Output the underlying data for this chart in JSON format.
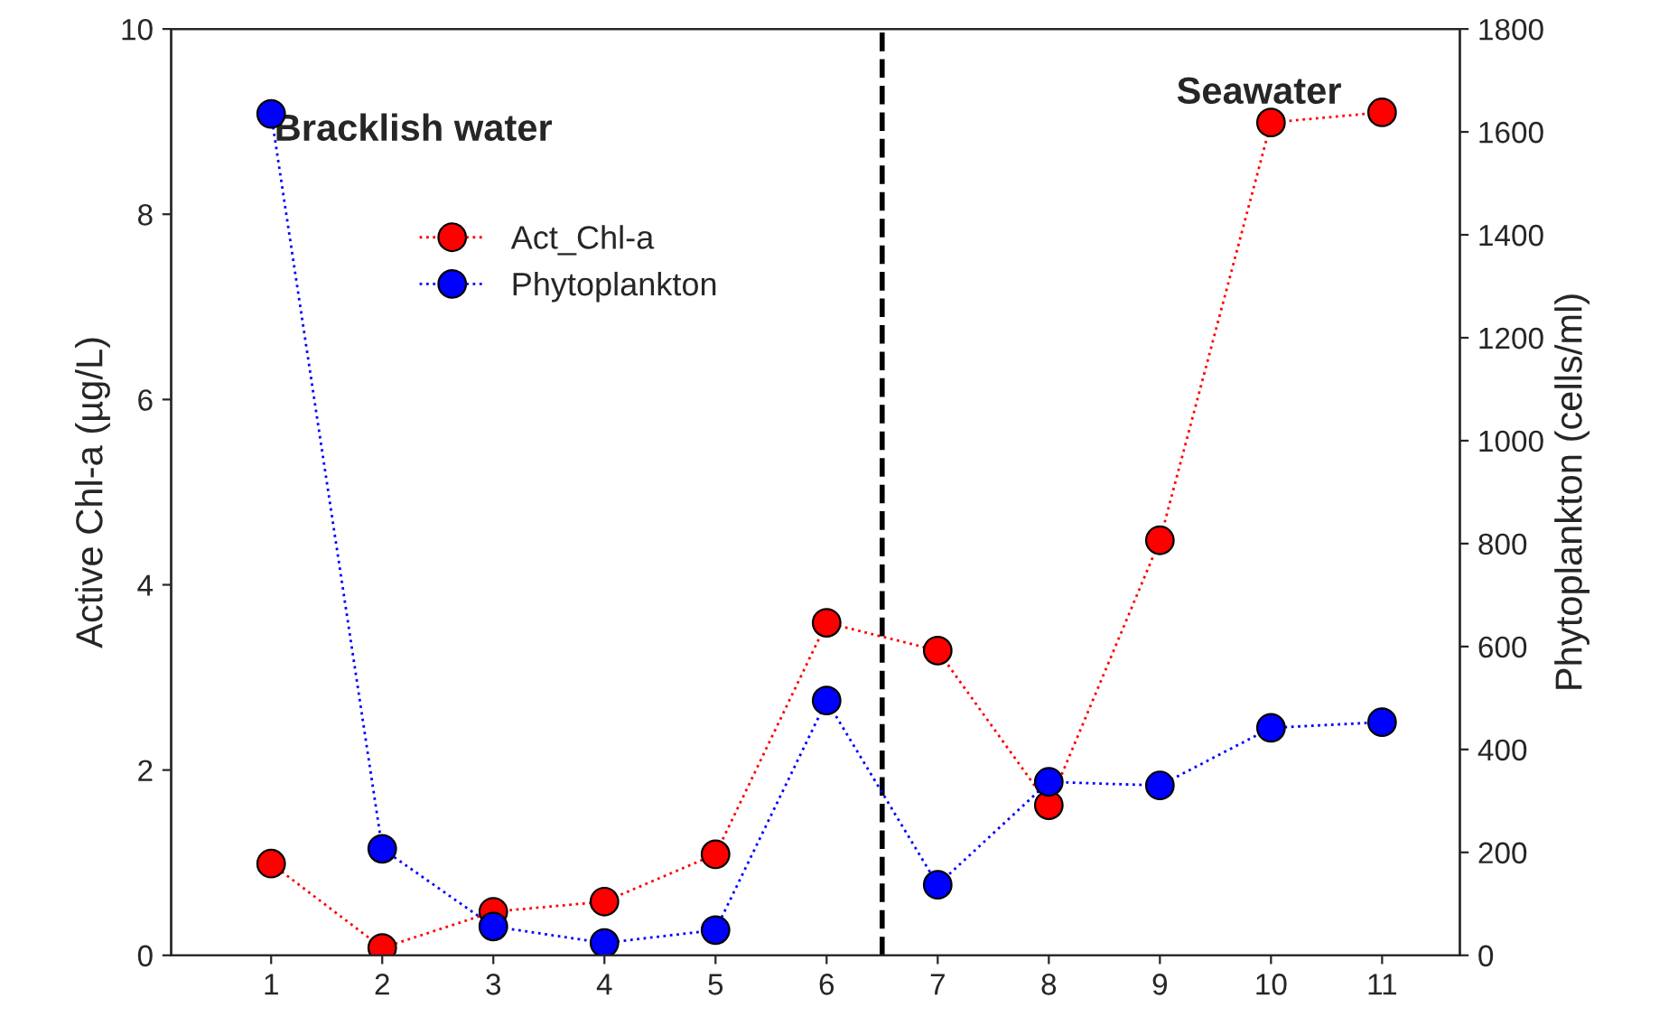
{
  "chart_data": {
    "type": "line",
    "ylabel": "Active Chl-a (µg/L)",
    "y2label": "Phytoplankton (cells/ml)",
    "x": [
      1,
      2,
      3,
      4,
      5,
      6,
      7,
      8,
      9,
      10,
      11
    ],
    "series": [
      {
        "name": "Act_Chl-a",
        "color": "#ff0000",
        "values": [
          0.99,
          0.08,
          0.47,
          0.58,
          1.09,
          3.59,
          3.29,
          1.62,
          4.48,
          8.99,
          9.1
        ]
      },
      {
        "name": "Phytoplankton",
        "color": "#0000ff",
        "axis": "y2",
        "values": [
          1635,
          207,
          56,
          24,
          49,
          495,
          137,
          337,
          330,
          442,
          453
        ]
      }
    ],
    "xlim": [
      0.1,
      11.7
    ],
    "xticks": [
      1,
      2,
      3,
      4,
      5,
      6,
      7,
      8,
      9,
      10,
      11
    ],
    "ylim": [
      0,
      10
    ],
    "yticks": [
      0,
      2,
      4,
      6,
      8,
      10
    ],
    "y2lim": [
      0,
      1800
    ],
    "y2ticks": [
      0,
      200,
      400,
      600,
      800,
      1000,
      1200,
      1400,
      1600,
      1800
    ],
    "ref_lines": [
      {
        "axis": "x",
        "value": 6.5,
        "color": "#000000",
        "line_style": "dashed"
      }
    ],
    "annotations": [
      "Bracklish water",
      "Seawater"
    ],
    "marker": "circle",
    "line_style": "dotted",
    "legend": "top left",
    "grid": false
  }
}
